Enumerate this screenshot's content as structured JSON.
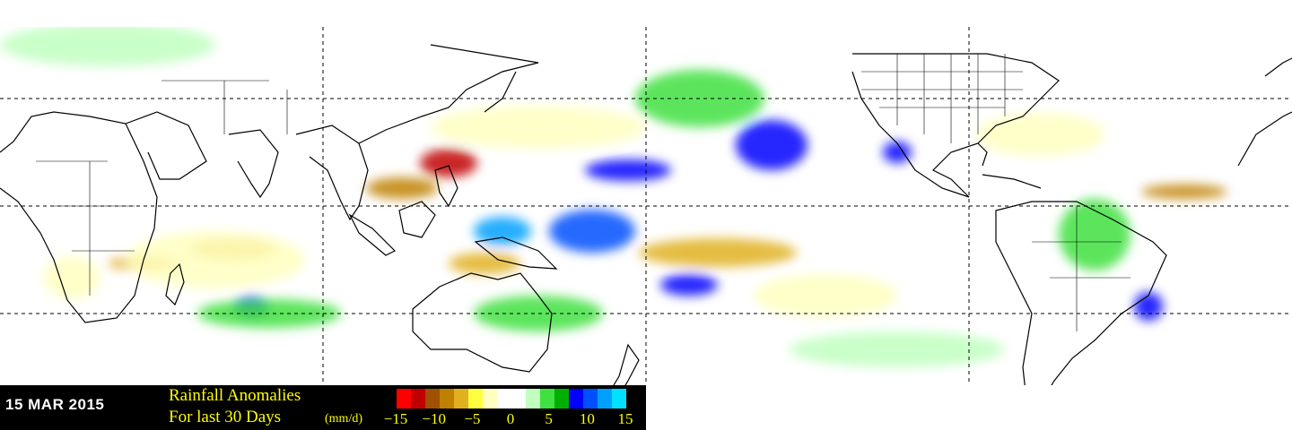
{
  "map": {
    "projection": "equirectangular",
    "lon_range": [
      0,
      360
    ],
    "lat_range": [
      -50,
      50
    ],
    "gridlines_dashed": true,
    "grid_lats": [
      -30,
      0,
      30
    ],
    "grid_lons": [
      90,
      180,
      270
    ],
    "ocean_color": "#ffffff",
    "coastline_color": "#000000",
    "anomaly_regions": [
      {
        "lon": 125,
        "lat": 12,
        "rx": 8,
        "ry": 4,
        "value": -12
      },
      {
        "lon": 112,
        "lat": 5,
        "rx": 10,
        "ry": 3,
        "value": -8
      },
      {
        "lon": 65,
        "lat": -12,
        "rx": 12,
        "ry": 3,
        "value": -7
      },
      {
        "lon": 40,
        "lat": -16,
        "rx": 10,
        "ry": 2,
        "value": -6
      },
      {
        "lon": 135,
        "lat": -16,
        "rx": 10,
        "ry": 3,
        "value": -7
      },
      {
        "lon": 200,
        "lat": -13,
        "rx": 22,
        "ry": 4,
        "value": -6
      },
      {
        "lon": 330,
        "lat": 4,
        "rx": 12,
        "ry": 2,
        "value": -8
      },
      {
        "lon": 140,
        "lat": -7,
        "rx": 8,
        "ry": 4,
        "value": 12
      },
      {
        "lon": 165,
        "lat": -7,
        "rx": 12,
        "ry": 6,
        "value": 10
      },
      {
        "lon": 215,
        "lat": 17,
        "rx": 10,
        "ry": 7,
        "value": 8
      },
      {
        "lon": 175,
        "lat": 10,
        "rx": 12,
        "ry": 3,
        "value": 8
      },
      {
        "lon": 70,
        "lat": -28,
        "rx": 5,
        "ry": 3,
        "value": 9
      },
      {
        "lon": 192,
        "lat": -22,
        "rx": 8,
        "ry": 3,
        "value": 9
      },
      {
        "lon": 320,
        "lat": -28,
        "rx": 4,
        "ry": 4,
        "value": 9
      },
      {
        "lon": 250,
        "lat": 15,
        "rx": 4,
        "ry": 3,
        "value": 9
      },
      {
        "lon": 60,
        "lat": -15,
        "rx": 25,
        "ry": 8,
        "value": -3
      },
      {
        "lon": 150,
        "lat": 22,
        "rx": 30,
        "ry": 6,
        "value": -3
      },
      {
        "lon": 290,
        "lat": 20,
        "rx": 18,
        "ry": 6,
        "value": -3
      },
      {
        "lon": 230,
        "lat": -25,
        "rx": 20,
        "ry": 6,
        "value": -2
      },
      {
        "lon": 20,
        "lat": -20,
        "rx": 8,
        "ry": 6,
        "value": -3
      },
      {
        "lon": 195,
        "lat": 30,
        "rx": 18,
        "ry": 8,
        "value": 4
      },
      {
        "lon": 150,
        "lat": -30,
        "rx": 18,
        "ry": 5,
        "value": 4
      },
      {
        "lon": 75,
        "lat": -30,
        "rx": 20,
        "ry": 4,
        "value": 4
      },
      {
        "lon": 305,
        "lat": -8,
        "rx": 10,
        "ry": 10,
        "value": 4
      },
      {
        "lon": 30,
        "lat": 45,
        "rx": 30,
        "ry": 6,
        "value": 3
      },
      {
        "lon": 250,
        "lat": -40,
        "rx": 30,
        "ry": 5,
        "value": 3
      }
    ]
  },
  "legend": {
    "date": "15 MAR 2015",
    "title_line1": "Rainfall Anomalies",
    "title_line2": "For last 30 Days",
    "units": "(mm/d)",
    "colorbar": {
      "colors": [
        "#ff0000",
        "#c00000",
        "#a05000",
        "#c08000",
        "#e0b020",
        "#ffff40",
        "#ffffc0",
        "#ffffff",
        "#ffffff",
        "#c0ffc0",
        "#40e040",
        "#00b000",
        "#0000ff",
        "#0050ff",
        "#00a0ff",
        "#00e0ff"
      ],
      "vmin": -15,
      "vmax": 15
    },
    "ticks": [
      {
        "label": "−15",
        "value": -15
      },
      {
        "label": "−10",
        "value": -10
      },
      {
        "label": "−5",
        "value": -5
      },
      {
        "label": "0",
        "value": 0
      },
      {
        "label": "5",
        "value": 5
      },
      {
        "label": "10",
        "value": 10
      },
      {
        "label": "15",
        "value": 15
      }
    ]
  }
}
